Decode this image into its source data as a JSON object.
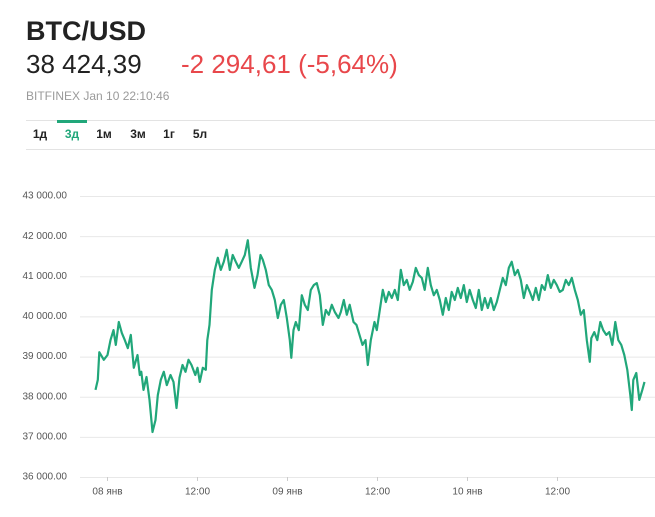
{
  "header": {
    "symbol": "BTC/USD",
    "price": "38 424,39",
    "change": "-2 294,61 (-5,64%)",
    "source": "BITFINEX Jan 10 22:10:46"
  },
  "tabs": {
    "items": [
      "1д",
      "3д",
      "1м",
      "3м",
      "1г",
      "5л"
    ],
    "selected": 1
  },
  "chart_data": {
    "type": "line",
    "color": "#21a77a",
    "grid": true,
    "ylim": [
      36000,
      43000
    ],
    "yticks": [
      {
        "value": 36000,
        "label": "36 000.00"
      },
      {
        "value": 37000,
        "label": "37 000.00"
      },
      {
        "value": 38000,
        "label": "38 000.00"
      },
      {
        "value": 39000,
        "label": "39 000.00"
      },
      {
        "value": 40000,
        "label": "40 000.00"
      },
      {
        "value": 41000,
        "label": "41 000.00"
      },
      {
        "value": 42000,
        "label": "42 000.00"
      },
      {
        "value": 43000,
        "label": "43 000.00"
      }
    ],
    "xlim": [
      -3,
      73
    ],
    "xticks": [
      {
        "value": 0,
        "label": "08 янв"
      },
      {
        "value": 12,
        "label": "12:00"
      },
      {
        "value": 24,
        "label": "09 янв"
      },
      {
        "value": 36,
        "label": "12:00"
      },
      {
        "value": 48,
        "label": "10 янв"
      },
      {
        "value": 60,
        "label": "12:00"
      }
    ],
    "x": [
      -1.6,
      -1.3,
      -1.1,
      -0.5,
      0,
      0.4,
      0.8,
      1.1,
      1.5,
      1.9,
      2.3,
      2.7,
      3.1,
      3.5,
      4.0,
      4.3,
      4.5,
      4.8,
      5.2,
      5.6,
      6.0,
      6.4,
      6.7,
      7.1,
      7.5,
      7.9,
      8.4,
      8.8,
      9.2,
      9.6,
      10.0,
      10.4,
      10.8,
      11.2,
      11.7,
      12.0,
      12.3,
      12.7,
      13.1,
      13.3,
      13.6,
      13.9,
      14.3,
      14.7,
      15.1,
      15.5,
      15.9,
      16.3,
      16.7,
      17.1,
      17.5,
      17.9,
      18.3,
      18.7,
      19.1,
      19.6,
      20.0,
      20.4,
      20.7,
      21.1,
      21.5,
      21.9,
      22.3,
      22.7,
      23.1,
      23.5,
      23.9,
      24.3,
      24.5,
      24.8,
      25.1,
      25.5,
      25.9,
      26.3,
      26.7,
      27.1,
      27.5,
      27.9,
      28.3,
      28.7,
      29.1,
      29.5,
      29.9,
      30.3,
      30.8,
      31.1,
      31.5,
      31.9,
      32.3,
      32.8,
      33.2,
      33.6,
      34.0,
      34.4,
      34.7,
      35.1,
      35.6,
      35.9,
      36.3,
      36.7,
      37.1,
      37.5,
      37.9,
      38.3,
      38.7,
      39.1,
      39.5,
      39.9,
      40.3,
      40.7,
      41.1,
      41.5,
      41.9,
      42.3,
      42.7,
      43.1,
      43.5,
      43.9,
      44.3,
      44.7,
      45.1,
      45.5,
      45.9,
      46.3,
      46.7,
      47.1,
      47.5,
      47.9,
      48.3,
      48.7,
      49.1,
      49.5,
      49.9,
      50.3,
      50.7,
      51.1,
      51.5,
      51.9,
      52.3,
      52.7,
      53.1,
      53.5,
      53.9,
      54.3,
      54.7,
      55.1,
      55.5,
      55.9,
      56.3,
      56.7,
      57.1,
      57.5,
      57.9,
      58.3,
      58.7,
      59.1,
      59.5,
      59.9,
      60.3,
      60.7,
      61.1,
      61.5,
      61.9,
      62.3,
      62.7,
      63.1,
      63.5,
      63.9,
      64.3,
      64.5,
      64.9,
      65.3,
      65.7,
      66.1,
      66.5,
      66.9,
      67.3,
      67.7,
      68.1,
      68.5,
      68.9,
      69.3,
      69.7,
      69.9,
      70.1,
      70.5,
      70.9,
      71.3,
      71.6
    ],
    "values": [
      38170,
      38420,
      39110,
      38920,
      39040,
      39410,
      39660,
      39290,
      39860,
      39590,
      39410,
      39210,
      39540,
      38720,
      39040,
      38540,
      38620,
      38170,
      38490,
      37920,
      37120,
      37420,
      38040,
      38420,
      38620,
      38290,
      38540,
      38370,
      37720,
      38470,
      38790,
      38620,
      38920,
      38790,
      38540,
      38720,
      38370,
      38720,
      38670,
      39410,
      39790,
      40660,
      41160,
      41460,
      41160,
      41360,
      41660,
      41160,
      41530,
      41360,
      41210,
      41360,
      41530,
      41900,
      41210,
      40710,
      41030,
      41530,
      41410,
      41160,
      40780,
      40660,
      40410,
      39960,
      40290,
      40410,
      39960,
      39410,
      38970,
      39660,
      39860,
      39660,
      40530,
      40290,
      40160,
      40660,
      40780,
      40830,
      40530,
      39790,
      40160,
      40040,
      40290,
      40110,
      39960,
      40110,
      40410,
      40040,
      40290,
      39860,
      39790,
      39540,
      39290,
      39410,
      38790,
      39410,
      39860,
      39660,
      40160,
      40660,
      40360,
      40610,
      40460,
      40660,
      40410,
      41160,
      40780,
      40910,
      40660,
      40860,
      41210,
      41030,
      40960,
      40660,
      41210,
      40780,
      40530,
      40660,
      40410,
      40040,
      40460,
      40160,
      40610,
      40410,
      40710,
      40460,
      40780,
      40360,
      40660,
      40410,
      40210,
      40660,
      40160,
      40460,
      40210,
      40460,
      40160,
      40360,
      40660,
      40960,
      40780,
      41210,
      41360,
      41030,
      41160,
      40910,
      40460,
      40780,
      40610,
      40410,
      40710,
      40410,
      40780,
      40660,
      41030,
      40710,
      40910,
      40780,
      40610,
      40660,
      40910,
      40780,
      40960,
      40660,
      40410,
      40040,
      40160,
      39410,
      38870,
      39460,
      39610,
      39410,
      39860,
      39660,
      39540,
      39610,
      39290,
      39860,
      39410,
      39290,
      39040,
      38670,
      38040,
      37670,
      38420,
      38590,
      37920,
      38170,
      38370
    ]
  }
}
